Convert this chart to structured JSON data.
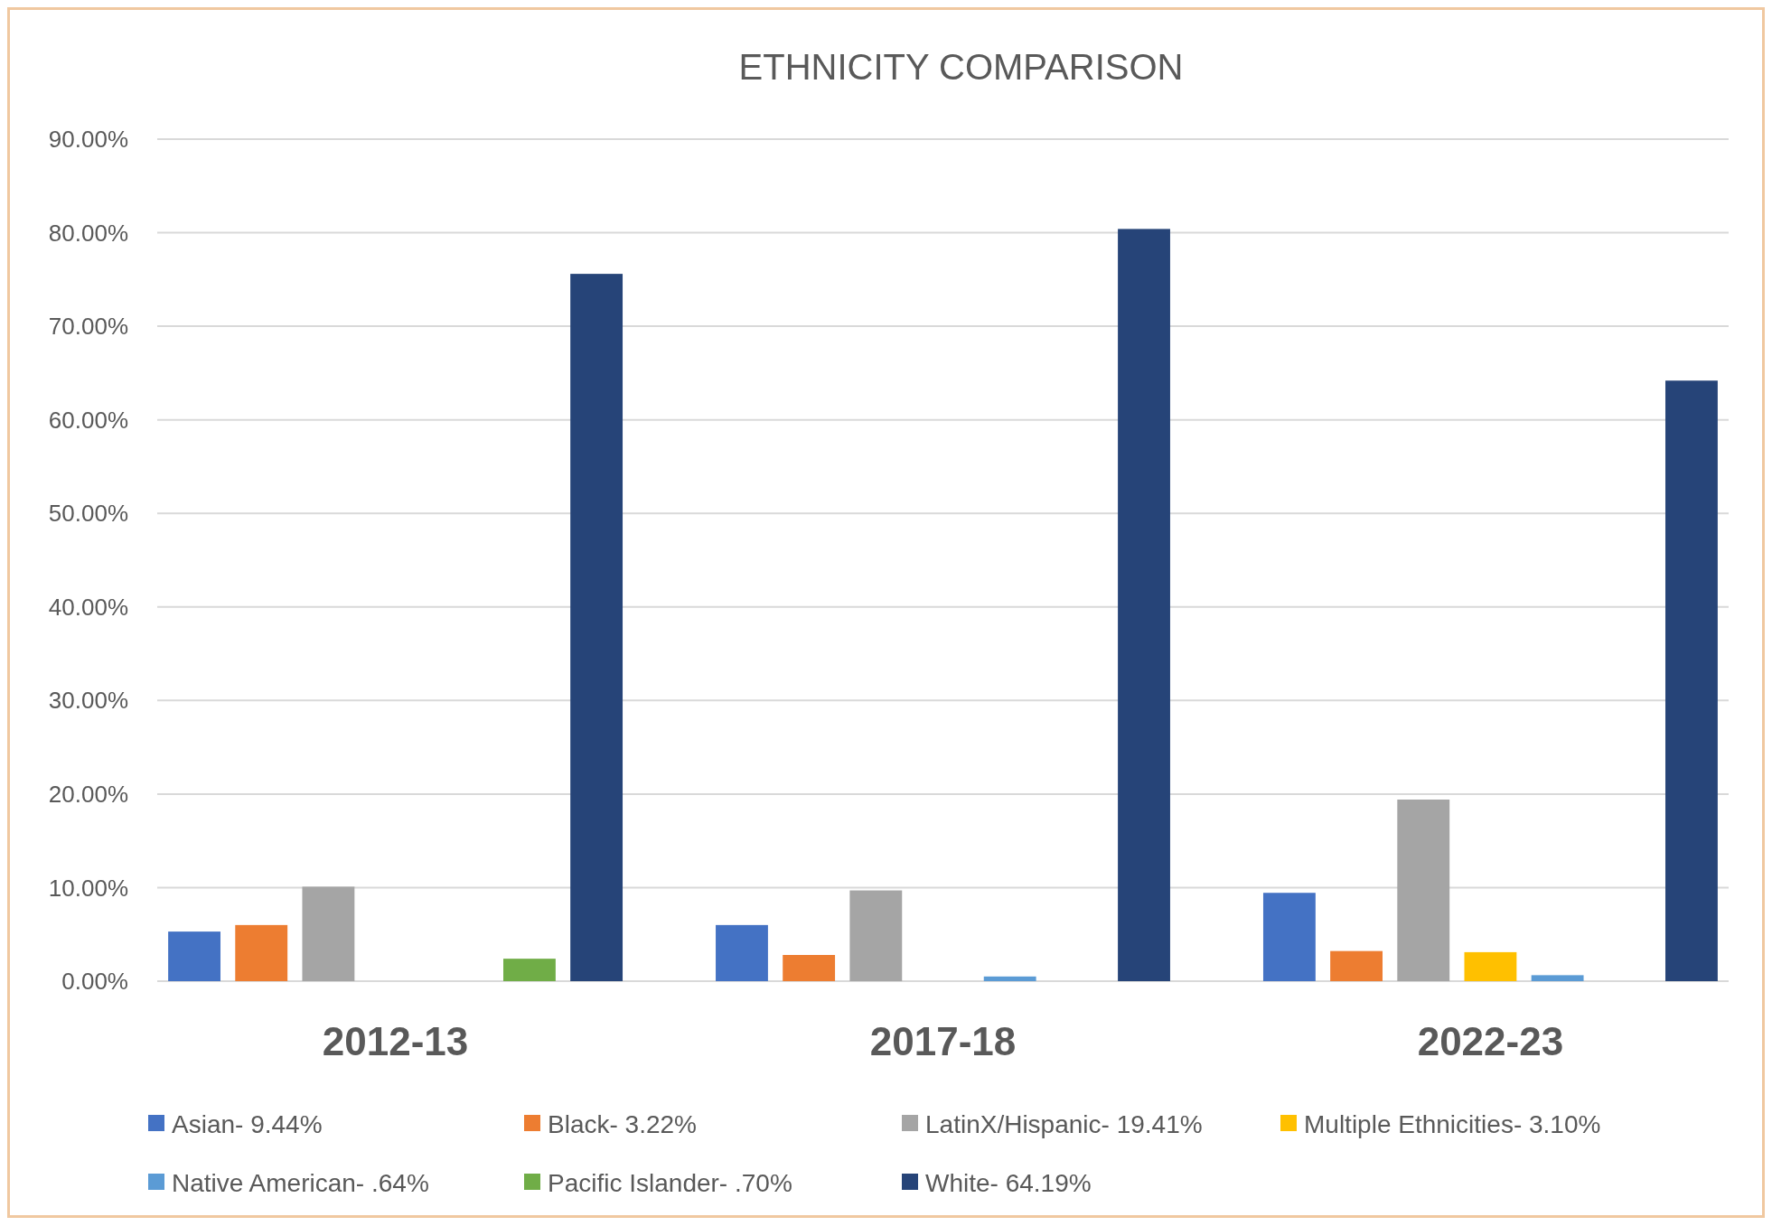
{
  "chart_data": {
    "type": "bar",
    "title": "ETHNICITY COMPARISON",
    "categories": [
      "2012-13",
      "2017-18",
      "2022-23"
    ],
    "series": [
      {
        "name": "Asian- 9.44%",
        "color": "#4472c4",
        "values": [
          5.3,
          6.0,
          9.44
        ]
      },
      {
        "name": "Black- 3.22%",
        "color": "#ed7d31",
        "values": [
          6.0,
          2.8,
          3.22
        ]
      },
      {
        "name": "LatinX/Hispanic- 19.41%",
        "color": "#a5a5a5",
        "values": [
          10.1,
          9.7,
          19.41
        ]
      },
      {
        "name": "Multiple Ethnicities- 3.10%",
        "color": "#ffc000",
        "values": [
          null,
          null,
          3.1
        ]
      },
      {
        "name": "Native American- .64%",
        "color": "#5b9bd5",
        "values": [
          null,
          0.5,
          0.64
        ]
      },
      {
        "name": "Pacific Islander- .70%",
        "color": "#70ad47",
        "values": [
          2.4,
          null,
          null
        ]
      },
      {
        "name": "White- 64.19%",
        "color": "#264478",
        "values": [
          75.6,
          80.4,
          64.19
        ]
      }
    ],
    "ylim": [
      0,
      90
    ],
    "yticks": [
      {
        "value": 0,
        "label": "0.00%"
      },
      {
        "value": 10,
        "label": "10.00%"
      },
      {
        "value": 20,
        "label": "20.00%"
      },
      {
        "value": 30,
        "label": "30.00%"
      },
      {
        "value": 40,
        "label": "40.00%"
      },
      {
        "value": 50,
        "label": "50.00%"
      },
      {
        "value": 60,
        "label": "60.00%"
      },
      {
        "value": 70,
        "label": "70.00%"
      },
      {
        "value": 80,
        "label": "80.00%"
      },
      {
        "value": 90,
        "label": "90.00%"
      }
    ],
    "grid": "y",
    "legend": "bottom"
  }
}
